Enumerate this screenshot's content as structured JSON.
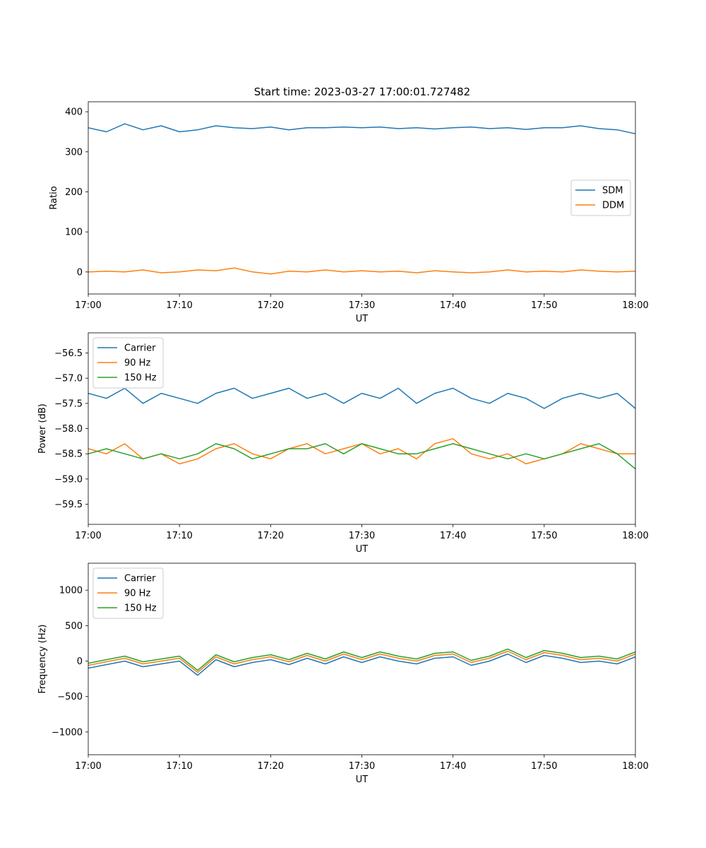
{
  "figure_title": "Start time: 2023-03-27 17:00:01.727482",
  "colors": {
    "series1": "#1f77b4",
    "series2": "#ff7f0e",
    "series3": "#2ca02c"
  },
  "chart_data": [
    {
      "type": "line",
      "title": "Start time: 2023-03-27 17:00:01.727482",
      "xlabel": "UT",
      "ylabel": "Ratio",
      "x_unit": "minutes after 17:00 UT",
      "xlim": [
        0,
        60
      ],
      "ylim": [
        -55,
        425
      ],
      "xticks": [
        0,
        10,
        20,
        30,
        40,
        50,
        60
      ],
      "xtick_labels": [
        "17:00",
        "17:10",
        "17:20",
        "17:30",
        "17:40",
        "17:50",
        "18:00"
      ],
      "yticks": [
        0,
        100,
        200,
        300,
        400
      ],
      "ytick_labels": [
        "0",
        "100",
        "200",
        "300",
        "400"
      ],
      "legend_position": "center-right",
      "grid": false,
      "x": [
        0,
        2,
        4,
        6,
        8,
        10,
        12,
        14,
        16,
        18,
        20,
        22,
        24,
        26,
        28,
        30,
        32,
        34,
        36,
        38,
        40,
        42,
        44,
        46,
        48,
        50,
        52,
        54,
        56,
        58,
        60
      ],
      "series": [
        {
          "name": "SDM",
          "color": "#1f77b4",
          "values": [
            360,
            350,
            370,
            355,
            365,
            350,
            355,
            365,
            360,
            358,
            362,
            355,
            360,
            360,
            362,
            360,
            362,
            358,
            360,
            357,
            360,
            362,
            358,
            360,
            356,
            360,
            360,
            365,
            358,
            355,
            345
          ]
        },
        {
          "name": "DDM",
          "color": "#ff7f0e",
          "values": [
            0,
            2,
            0,
            5,
            -2,
            0,
            5,
            3,
            10,
            0,
            -5,
            2,
            0,
            5,
            0,
            3,
            0,
            2,
            -2,
            3,
            0,
            -2,
            0,
            5,
            0,
            2,
            0,
            5,
            2,
            0,
            2
          ]
        }
      ]
    },
    {
      "type": "line",
      "title": "",
      "xlabel": "UT",
      "ylabel": "Power (dB)",
      "x_unit": "minutes after 17:00 UT",
      "xlim": [
        0,
        60
      ],
      "ylim": [
        -59.9,
        -56.1
      ],
      "xticks": [
        0,
        10,
        20,
        30,
        40,
        50,
        60
      ],
      "xtick_labels": [
        "17:00",
        "17:10",
        "17:20",
        "17:30",
        "17:40",
        "17:50",
        "18:00"
      ],
      "yticks": [
        -59.5,
        -59.0,
        -58.5,
        -58.0,
        -57.5,
        -57.0,
        -56.5
      ],
      "ytick_labels": [
        "−59.5",
        "−59.0",
        "−58.5",
        "−58.0",
        "−57.5",
        "−57.0",
        "−56.5"
      ],
      "legend_position": "top-left",
      "grid": false,
      "x": [
        0,
        2,
        4,
        6,
        8,
        10,
        12,
        14,
        16,
        18,
        20,
        22,
        24,
        26,
        28,
        30,
        32,
        34,
        36,
        38,
        40,
        42,
        44,
        46,
        48,
        50,
        52,
        54,
        56,
        58,
        60
      ],
      "series": [
        {
          "name": "Carrier",
          "color": "#1f77b4",
          "values": [
            -57.3,
            -57.4,
            -57.2,
            -57.5,
            -57.3,
            -57.4,
            -57.5,
            -57.3,
            -57.2,
            -57.4,
            -57.3,
            -57.2,
            -57.4,
            -57.3,
            -57.5,
            -57.3,
            -57.4,
            -57.2,
            -57.5,
            -57.3,
            -57.2,
            -57.4,
            -57.5,
            -57.3,
            -57.4,
            -57.6,
            -57.4,
            -57.3,
            -57.4,
            -57.3,
            -57.6
          ]
        },
        {
          "name": "90 Hz",
          "color": "#ff7f0e",
          "values": [
            -58.4,
            -58.5,
            -58.3,
            -58.6,
            -58.5,
            -58.7,
            -58.6,
            -58.4,
            -58.3,
            -58.5,
            -58.6,
            -58.4,
            -58.3,
            -58.5,
            -58.4,
            -58.3,
            -58.5,
            -58.4,
            -58.6,
            -58.3,
            -58.2,
            -58.5,
            -58.6,
            -58.5,
            -58.7,
            -58.6,
            -58.5,
            -58.3,
            -58.4,
            -58.5,
            -58.5
          ]
        },
        {
          "name": "150 Hz",
          "color": "#2ca02c",
          "values": [
            -58.5,
            -58.4,
            -58.5,
            -58.6,
            -58.5,
            -58.6,
            -58.5,
            -58.3,
            -58.4,
            -58.6,
            -58.5,
            -58.4,
            -58.4,
            -58.3,
            -58.5,
            -58.3,
            -58.4,
            -58.5,
            -58.5,
            -58.4,
            -58.3,
            -58.4,
            -58.5,
            -58.6,
            -58.5,
            -58.6,
            -58.5,
            -58.4,
            -58.3,
            -58.5,
            -58.8
          ]
        }
      ]
    },
    {
      "type": "line",
      "title": "",
      "xlabel": "UT",
      "ylabel": "Frequency (Hz)",
      "x_unit": "minutes after 17:00 UT",
      "xlim": [
        0,
        60
      ],
      "ylim": [
        -1320,
        1380
      ],
      "xticks": [
        0,
        10,
        20,
        30,
        40,
        50,
        60
      ],
      "xtick_labels": [
        "17:00",
        "17:10",
        "17:20",
        "17:30",
        "17:40",
        "17:50",
        "18:00"
      ],
      "yticks": [
        -1000,
        -500,
        0,
        500,
        1000
      ],
      "ytick_labels": [
        "−1000",
        "−500",
        "0",
        "500",
        "1000"
      ],
      "legend_position": "top-left",
      "grid": false,
      "x": [
        0,
        2,
        4,
        6,
        8,
        10,
        12,
        14,
        16,
        18,
        20,
        22,
        24,
        26,
        28,
        30,
        32,
        34,
        36,
        38,
        40,
        42,
        44,
        46,
        48,
        50,
        52,
        54,
        56,
        58,
        60
      ],
      "series": [
        {
          "name": "Carrier",
          "color": "#1f77b4",
          "values": [
            -100,
            -50,
            0,
            -80,
            -40,
            0,
            -200,
            20,
            -80,
            -20,
            20,
            -50,
            40,
            -40,
            60,
            -20,
            60,
            0,
            -40,
            40,
            60,
            -60,
            0,
            100,
            -20,
            80,
            40,
            -20,
            0,
            -40,
            60
          ]
        },
        {
          "name": "90 Hz",
          "color": "#ff7f0e",
          "values": [
            -60,
            -10,
            40,
            -40,
            0,
            40,
            -160,
            60,
            -40,
            20,
            60,
            -10,
            80,
            0,
            100,
            20,
            100,
            40,
            0,
            80,
            100,
            -20,
            40,
            140,
            20,
            120,
            80,
            20,
            40,
            0,
            100
          ]
        },
        {
          "name": "150 Hz",
          "color": "#2ca02c",
          "values": [
            -30,
            20,
            70,
            -10,
            30,
            70,
            -130,
            90,
            -10,
            50,
            90,
            20,
            110,
            30,
            130,
            50,
            130,
            70,
            30,
            110,
            130,
            10,
            70,
            170,
            50,
            150,
            110,
            50,
            70,
            30,
            130
          ]
        }
      ]
    }
  ]
}
